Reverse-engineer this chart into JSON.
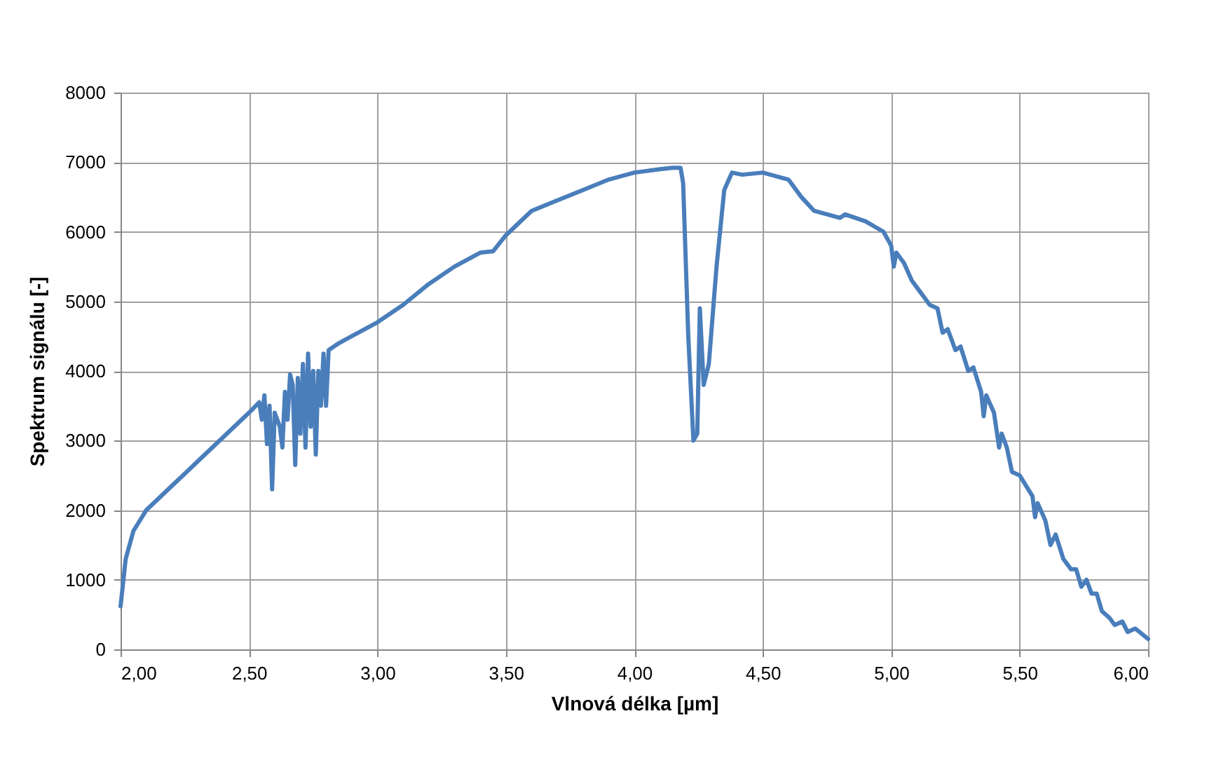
{
  "chart_data": {
    "type": "line",
    "xlabel": "Vlnová délka [µm]",
    "ylabel": "Spektrum signálu  [-]",
    "x": [
      2.0,
      2.02,
      2.05,
      2.1,
      2.2,
      2.3,
      2.4,
      2.5,
      2.54,
      2.55,
      2.56,
      2.57,
      2.58,
      2.59,
      2.6,
      2.62,
      2.63,
      2.64,
      2.65,
      2.66,
      2.67,
      2.68,
      2.69,
      2.7,
      2.71,
      2.72,
      2.73,
      2.74,
      2.75,
      2.76,
      2.77,
      2.78,
      2.79,
      2.8,
      2.81,
      2.85,
      2.9,
      3.0,
      3.1,
      3.2,
      3.3,
      3.4,
      3.45,
      3.5,
      3.6,
      3.7,
      3.8,
      3.9,
      4.0,
      4.1,
      4.15,
      4.18,
      4.19,
      4.21,
      4.23,
      4.245,
      4.255,
      4.27,
      4.29,
      4.32,
      4.35,
      4.38,
      4.42,
      4.5,
      4.6,
      4.65,
      4.7,
      4.8,
      4.82,
      4.9,
      4.97,
      5.0,
      5.01,
      5.02,
      5.05,
      5.08,
      5.1,
      5.15,
      5.18,
      5.2,
      5.22,
      5.25,
      5.27,
      5.3,
      5.32,
      5.35,
      5.36,
      5.37,
      5.4,
      5.42,
      5.43,
      5.45,
      5.47,
      5.5,
      5.55,
      5.56,
      5.57,
      5.6,
      5.62,
      5.64,
      5.67,
      5.7,
      5.72,
      5.74,
      5.76,
      5.78,
      5.8,
      5.82,
      5.85,
      5.87,
      5.9,
      5.92,
      5.95,
      6.0
    ],
    "series": [
      {
        "color": "#4a7ebb",
        "values": [
          620,
          1300,
          1700,
          2000,
          2350,
          2700,
          3050,
          3400,
          3550,
          3300,
          3650,
          2950,
          3500,
          2300,
          3400,
          3200,
          2900,
          3700,
          3300,
          3950,
          3800,
          2650,
          3900,
          3100,
          4100,
          2900,
          4250,
          3200,
          4000,
          2800,
          4000,
          3500,
          4250,
          3500,
          4300,
          4400,
          4500,
          4700,
          4950,
          5250,
          5500,
          5700,
          5720,
          5950,
          6300,
          6450,
          6600,
          6750,
          6850,
          6900,
          6920,
          6920,
          6700,
          4500,
          3000,
          3100,
          4900,
          3800,
          4100,
          5500,
          6600,
          6850,
          6820,
          6850,
          6750,
          6500,
          6300,
          6200,
          6250,
          6150,
          6000,
          5800,
          5500,
          5700,
          5550,
          5300,
          5200,
          4950,
          4900,
          4550,
          4600,
          4300,
          4350,
          4000,
          4050,
          3700,
          3350,
          3650,
          3400,
          2900,
          3100,
          2900,
          2550,
          2500,
          2200,
          1900,
          2100,
          1850,
          1500,
          1650,
          1300,
          1150,
          1150,
          900,
          1000,
          800,
          800,
          550,
          450,
          350,
          400,
          250,
          300,
          150
        ]
      }
    ],
    "xlim": [
      2.0,
      6.0
    ],
    "xticks": [
      {
        "value": 2.0,
        "label": "2,00"
      },
      {
        "value": 2.5,
        "label": "2,50"
      },
      {
        "value": 3.0,
        "label": "3,00"
      },
      {
        "value": 3.5,
        "label": "3,50"
      },
      {
        "value": 4.0,
        "label": "4,00"
      },
      {
        "value": 4.5,
        "label": "4,50"
      },
      {
        "value": 5.0,
        "label": "5,00"
      },
      {
        "value": 5.5,
        "label": "5,50"
      },
      {
        "value": 6.0,
        "label": "6,00"
      }
    ],
    "ylim": [
      0,
      8000
    ],
    "yticks": [
      0,
      1000,
      2000,
      3000,
      4000,
      5000,
      6000,
      7000,
      8000
    ],
    "grid": true,
    "marker": "none",
    "line_style": "solid"
  }
}
